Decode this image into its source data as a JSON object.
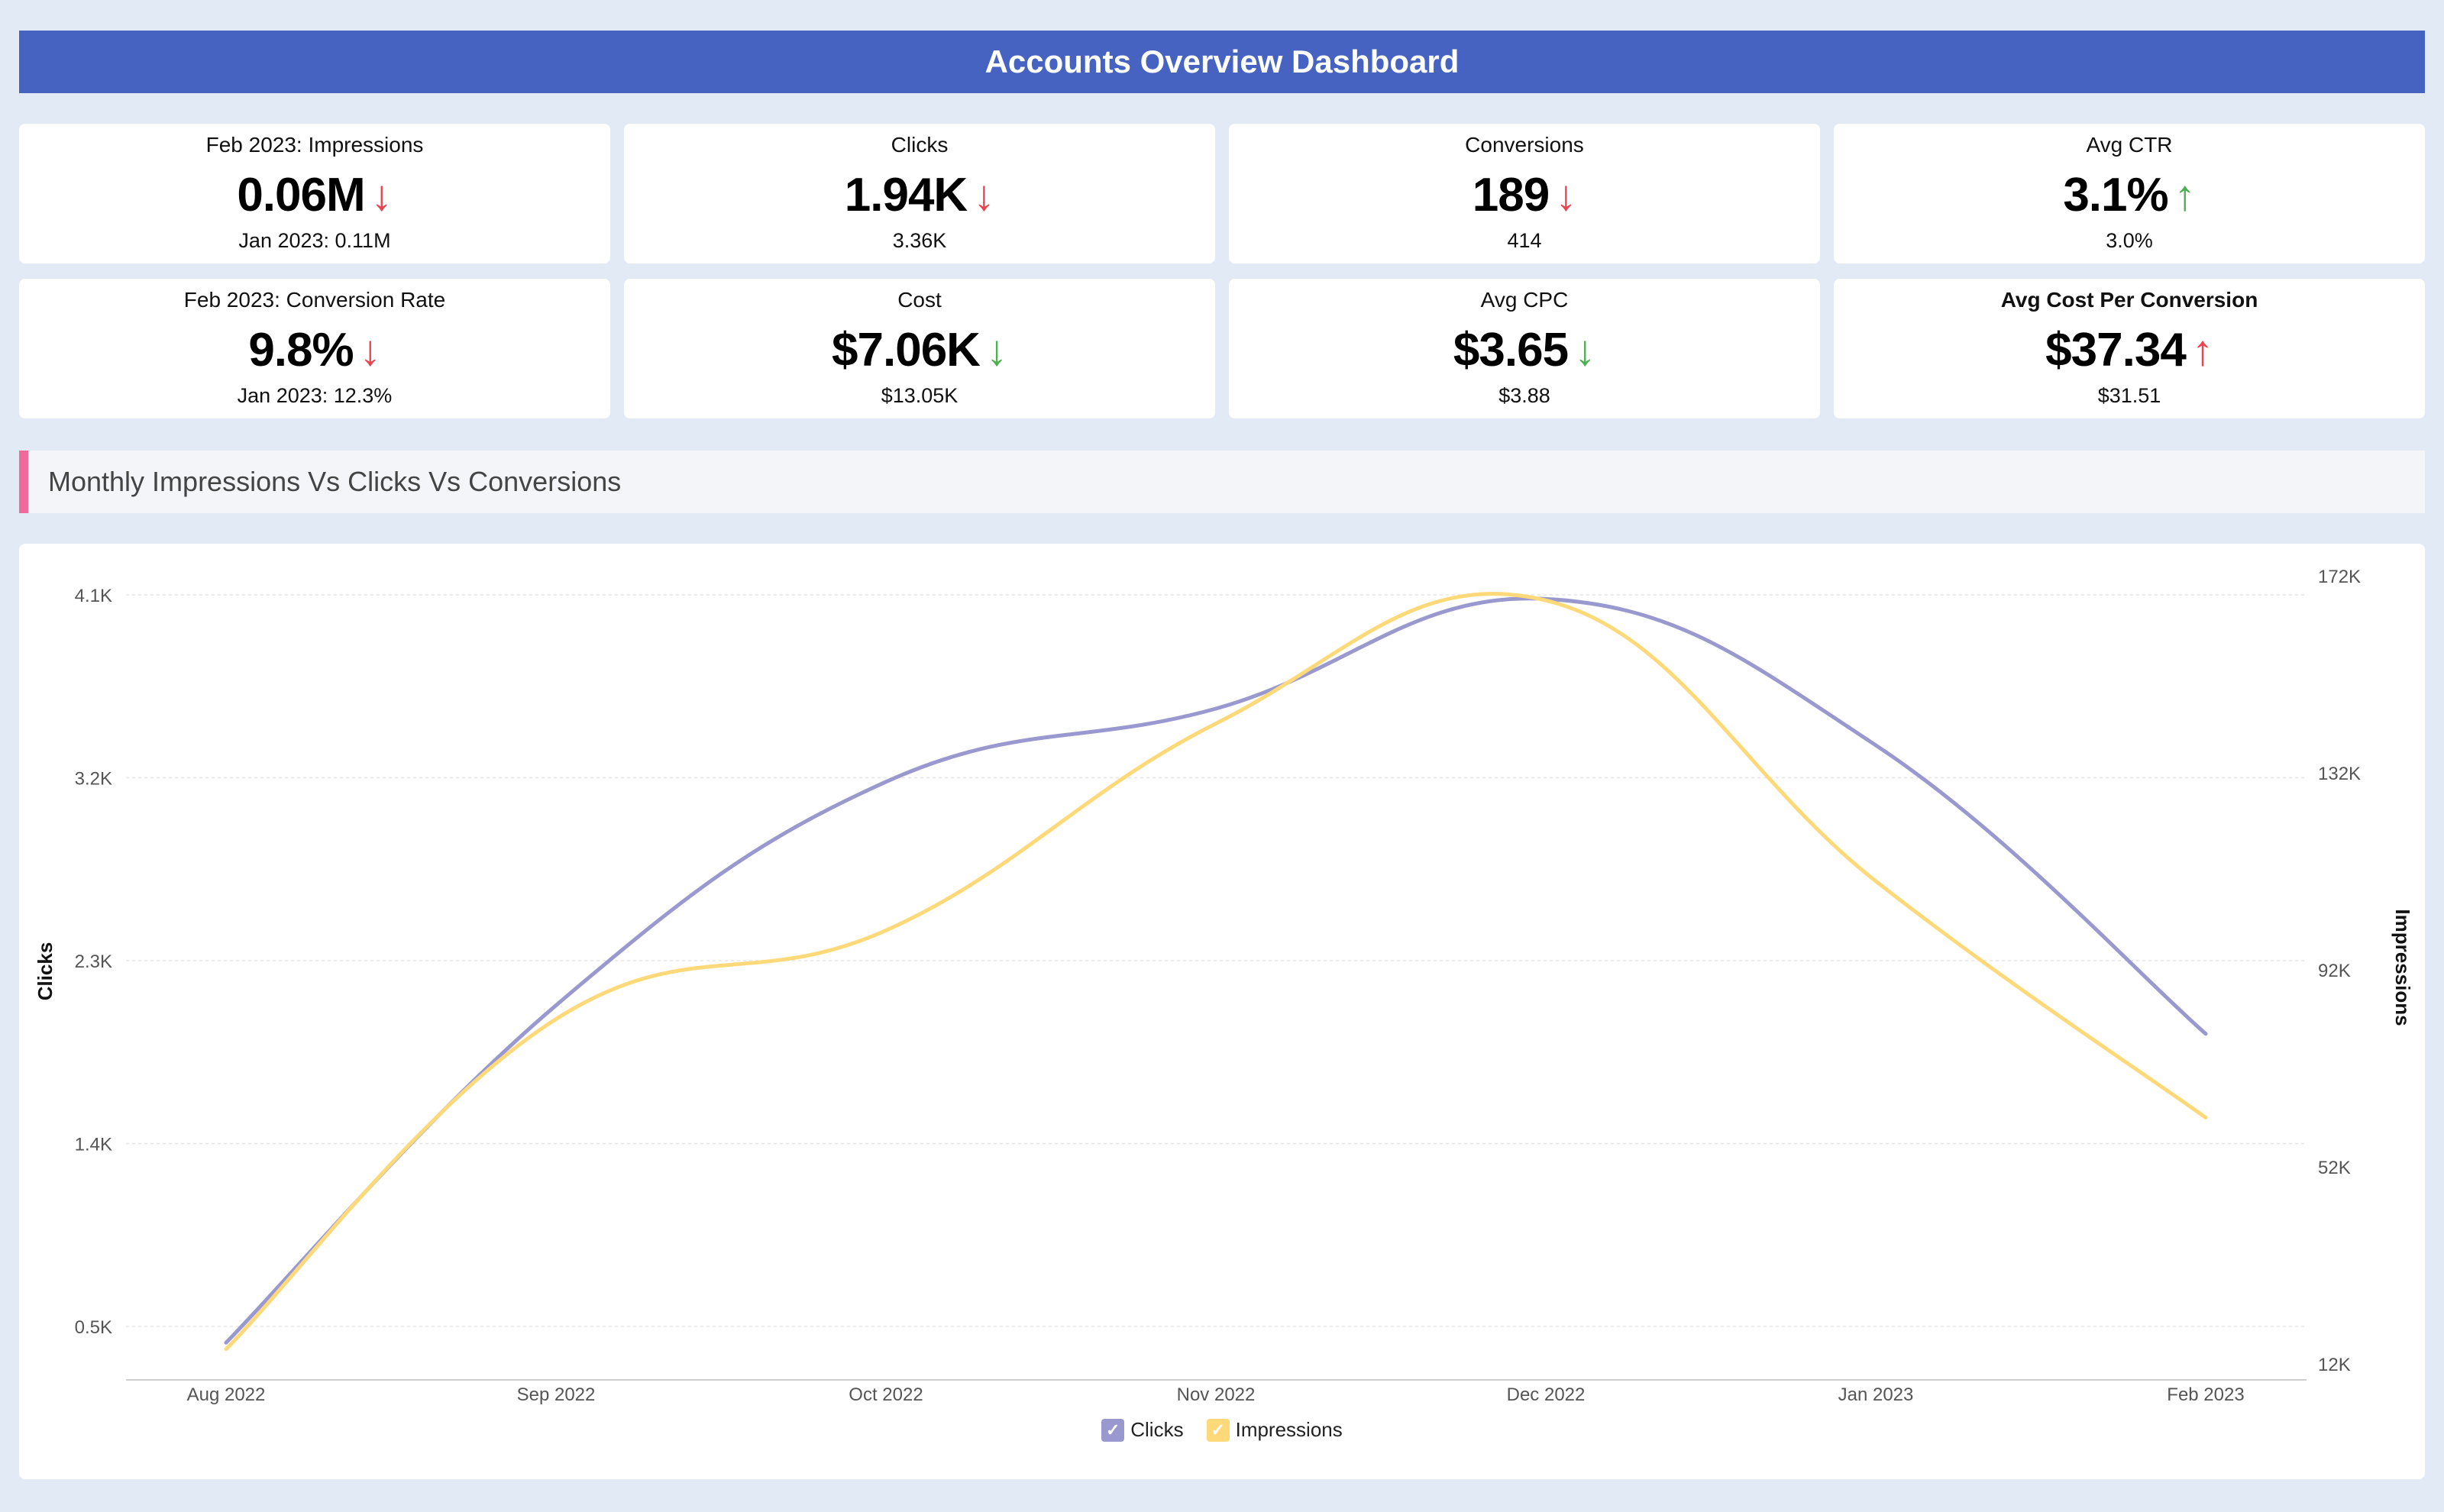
{
  "header": {
    "title": "Accounts Overview Dashboard"
  },
  "colors": {
    "title_bar": "#4763c2",
    "down_red": "#e8434f",
    "down_green": "#4caf50",
    "up_green": "#4caf50",
    "up_red": "#e8434f",
    "clicks_line": "#9a99cf",
    "impressions_line": "#fdd97a",
    "section_accent": "#ef6a9a"
  },
  "kpis": [
    {
      "label": "Feb 2023: Impressions",
      "value": "0.06M",
      "arrow": "↓",
      "arrow_color": "#e8434f",
      "previous": "Jan 2023: 0.11M"
    },
    {
      "label": "Clicks",
      "value": "1.94K",
      "arrow": "↓",
      "arrow_color": "#e8434f",
      "previous": "3.36K"
    },
    {
      "label": "Conversions",
      "value": "189",
      "arrow": "↓",
      "arrow_color": "#e8434f",
      "previous": "414"
    },
    {
      "label": "Avg CTR",
      "value": "3.1%",
      "arrow": "↑",
      "arrow_color": "#4caf50",
      "previous": "3.0%"
    },
    {
      "label": "Feb 2023: Conversion Rate",
      "value": "9.8%",
      "arrow": "↓",
      "arrow_color": "#e8434f",
      "previous": "Jan 2023: 12.3%"
    },
    {
      "label": "Cost",
      "value": "$7.06K",
      "arrow": "↓",
      "arrow_color": "#4caf50",
      "previous": "$13.05K"
    },
    {
      "label": "Avg CPC",
      "value": "$3.65",
      "arrow": "↓",
      "arrow_color": "#4caf50",
      "previous": "$3.88"
    },
    {
      "label": "Avg Cost Per Conversion",
      "value": "$37.34",
      "arrow": "↑",
      "arrow_color": "#e8434f",
      "previous": "$31.51",
      "bold_label": true
    }
  ],
  "section": {
    "title": "Monthly Impressions Vs Clicks Vs Conversions"
  },
  "chart_data": {
    "type": "line",
    "categories": [
      "Aug 2022",
      "Sep 2022",
      "Oct 2022",
      "Nov 2022",
      "Dec 2022",
      "Jan 2023",
      "Feb 2023"
    ],
    "series": [
      {
        "name": "Clicks",
        "axis": "left",
        "color": "#9a99cf",
        "values": [
          420,
          2080,
          3180,
          3540,
          4080,
          3360,
          1940
        ]
      },
      {
        "name": "Impressions",
        "axis": "right",
        "color": "#fdd97a",
        "values": [
          15000,
          82000,
          100000,
          142000,
          167000,
          110000,
          62000
        ]
      }
    ],
    "ylabel_left": "Clicks",
    "ylabel_right": "Impressions",
    "y_left_ticks": [
      "0.5K",
      "1.4K",
      "2.3K",
      "3.2K",
      "4.1K"
    ],
    "y_left_tick_values": [
      500,
      1400,
      2300,
      3200,
      4100
    ],
    "y_right_ticks": [
      "12K",
      "52K",
      "92K",
      "132K",
      "172K"
    ],
    "y_right_tick_values": [
      12000,
      52000,
      92000,
      132000,
      172000
    ],
    "legend": [
      "Clicks",
      "Impressions"
    ],
    "legend_position": "bottom-center",
    "grid": true
  }
}
